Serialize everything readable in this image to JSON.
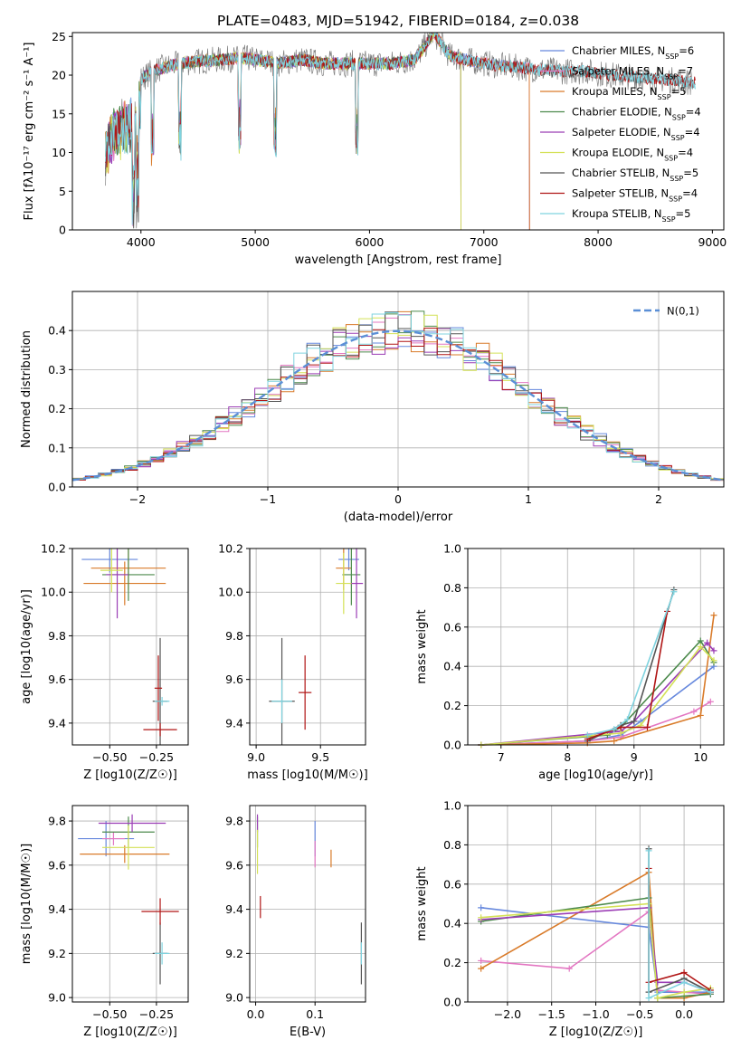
{
  "chart_data": [
    {
      "type": "line",
      "title": "PLATE=0483, MJD=51942, FIBERID=0184, z=0.038",
      "xlabel": "wavelength [Angstrom, rest frame]",
      "ylabel": "Flux [fλ10⁻¹⁷ erg cm⁻² s⁻¹ A⁻¹]",
      "xlim": [
        3400,
        9100
      ],
      "ylim": [
        0,
        25.5
      ],
      "xticks": [
        4000,
        5000,
        6000,
        7000,
        8000,
        9000
      ],
      "yticks": [
        0,
        5,
        10,
        15,
        20,
        25
      ],
      "grid": false,
      "legend_position": "upper right",
      "observed": {
        "color": "#808080",
        "x": [
          3700,
          3750,
          3850,
          3950,
          4000,
          4100,
          4200,
          4350,
          4500,
          4700,
          4900,
          5100,
          5200,
          5400,
          5600,
          5800,
          6000,
          6200,
          6400,
          6563,
          6700,
          6900,
          7100,
          7300,
          7500,
          7700,
          7900,
          8100,
          8300,
          8500,
          8700,
          8850
        ],
        "y": [
          13,
          15,
          16,
          17,
          19.5,
          20.5,
          21,
          21.5,
          21.8,
          22,
          22.2,
          21.8,
          21.5,
          22,
          21.5,
          21.5,
          21.5,
          21.5,
          22,
          25.5,
          22.5,
          21.8,
          21.3,
          21,
          20.7,
          20.5,
          20.5,
          20,
          19.8,
          19.5,
          19.3,
          19
        ]
      },
      "series": [
        {
          "name": "Chabrier MILES, N_SSP=6",
          "color": "#6688dd",
          "x_end": 7400
        },
        {
          "name": "Salpeter MILES, N_SSP=7",
          "color": "#e377c2",
          "x_end": 7400
        },
        {
          "name": "Kroupa MILES, N_SSP=5",
          "color": "#d97b2a",
          "x_end": 7400
        },
        {
          "name": "Chabrier ELODIE, N_SSP=4",
          "color": "#4c8a4c",
          "x_end": 6800
        },
        {
          "name": "Salpeter ELODIE, N_SSP=4",
          "color": "#9b3db5",
          "x_end": 6800
        },
        {
          "name": "Kroupa ELODIE, N_SSP=4",
          "color": "#d4e157",
          "x_end": 6800
        },
        {
          "name": "Chabrier STELIB, N_SSP=5",
          "color": "#555555",
          "x_end": 8850
        },
        {
          "name": "Salpeter STELIB, N_SSP=4",
          "color": "#b01515",
          "x_end": 8850
        },
        {
          "name": "Kroupa STELIB, N_SSP=5",
          "color": "#7fd3df",
          "x_end": 8850
        }
      ]
    },
    {
      "type": "line",
      "xlabel": "(data-model)/error",
      "ylabel": "Normed distribution",
      "xlim": [
        -2.5,
        2.5
      ],
      "ylim": [
        0,
        0.5
      ],
      "xticks": [
        -2,
        -1,
        0,
        1,
        2
      ],
      "yticks": [
        0.0,
        0.1,
        0.2,
        0.3,
        0.4
      ],
      "grid": true,
      "legend_position": "upper right",
      "reference": {
        "name": "N(0,1)",
        "color": "#5b8fd6",
        "linestyle": "dashed",
        "function": "standard normal pdf"
      },
      "histogram": {
        "bin_width": 0.1,
        "x_start": -2.5,
        "n_bins": 50,
        "n_series": 9,
        "note": "9 step histograms, one per model, colors as in panel 1"
      }
    },
    {
      "type": "scatter",
      "xlabel": "Z [log10(Z/Z☉)]",
      "ylabel": "age  [log10(age/yr)]",
      "xlim": [
        -0.7,
        -0.08
      ],
      "ylim": [
        9.3,
        10.2
      ],
      "xticks": [
        -0.5,
        -0.25
      ],
      "xtick_labels": [
        "−0.50",
        "−0.25"
      ],
      "yticks": [
        9.4,
        9.6,
        9.8,
        10.0,
        10.2
      ],
      "grid": true,
      "points": [
        {
          "x": -0.5,
          "y": 10.15,
          "xerr": 0.15,
          "yerr": 0.06,
          "color": "#6688dd"
        },
        {
          "x": -0.4,
          "y": 10.11,
          "xerr": 0.2,
          "yerr": 0.1,
          "color": "#d97b2a"
        },
        {
          "x": -0.42,
          "y": 10.04,
          "xerr": 0.22,
          "yerr": 0.1,
          "color": "#d97b2a"
        },
        {
          "x": -0.4,
          "y": 10.08,
          "xerr": 0.14,
          "yerr": 0.12,
          "color": "#4c8a4c"
        },
        {
          "x": -0.46,
          "y": 10.08,
          "xerr": 0.06,
          "yerr": 0.2,
          "color": "#9b3db5"
        },
        {
          "x": -0.49,
          "y": 10.1,
          "xerr": 0.06,
          "yerr": 0.1,
          "color": "#d4e157"
        },
        {
          "x": -0.23,
          "y": 9.5,
          "xerr": 0.04,
          "yerr": 0.29,
          "color": "#555555"
        },
        {
          "x": -0.24,
          "y": 9.56,
          "xerr": 0.02,
          "yerr": 0.15,
          "color": "#b01515"
        },
        {
          "x": -0.23,
          "y": 9.37,
          "xerr": 0.09,
          "yerr": 0.03,
          "color": "#b01515"
        },
        {
          "x": -0.22,
          "y": 9.5,
          "xerr": 0.04,
          "yerr": 0.02,
          "color": "#7fd3df"
        }
      ]
    },
    {
      "type": "scatter",
      "xlabel": "mass [log10(M/M☉)]",
      "ylabel": "",
      "xlim": [
        8.95,
        9.85
      ],
      "ylim": [
        9.3,
        10.2
      ],
      "xticks": [
        9.0,
        9.5
      ],
      "yticks": [
        9.4,
        9.6,
        9.8,
        10.0,
        10.2
      ],
      "grid": true,
      "points": [
        {
          "x": 9.72,
          "y": 10.15,
          "xerr": 0.08,
          "yerr": 0.05,
          "color": "#6688dd"
        },
        {
          "x": 9.68,
          "y": 10.11,
          "xerr": 0.06,
          "yerr": 0.1,
          "color": "#d97b2a"
        },
        {
          "x": 9.74,
          "y": 10.08,
          "xerr": 0.07,
          "yerr": 0.14,
          "color": "#4c8a4c"
        },
        {
          "x": 9.78,
          "y": 10.04,
          "xerr": 0.05,
          "yerr": 0.16,
          "color": "#9b3db5"
        },
        {
          "x": 9.68,
          "y": 10.04,
          "xerr": 0.06,
          "yerr": 0.14,
          "color": "#d4e157"
        },
        {
          "x": 9.2,
          "y": 9.5,
          "xerr": 0.1,
          "yerr": 0.29,
          "color": "#555555"
        },
        {
          "x": 9.38,
          "y": 9.54,
          "xerr": 0.05,
          "yerr": 0.17,
          "color": "#b01515"
        },
        {
          "x": 9.2,
          "y": 9.5,
          "xerr": 0.08,
          "yerr": 0.1,
          "color": "#7fd3df"
        }
      ]
    },
    {
      "type": "line",
      "xlabel": "age  [log10(age/yr)]",
      "ylabel": "mass weight",
      "xlim": [
        6.5,
        10.35
      ],
      "ylim": [
        0,
        1.0
      ],
      "xticks": [
        7,
        8,
        9,
        10
      ],
      "yticks": [
        0.0,
        0.2,
        0.4,
        0.6,
        0.8,
        1.0
      ],
      "grid": true,
      "series": [
        {
          "name": "Chabrier MILES",
          "color": "#6688dd",
          "x": [
            6.7,
            8.3,
            8.8,
            9.1,
            10.2
          ],
          "y": [
            0.0,
            0.02,
            0.05,
            0.12,
            0.4
          ]
        },
        {
          "name": "Salpeter MILES",
          "color": "#e377c2",
          "x": [
            6.7,
            8.3,
            8.8,
            9.9,
            10.15
          ],
          "y": [
            0.0,
            0.02,
            0.04,
            0.17,
            0.22
          ]
        },
        {
          "name": "Kroupa MILES",
          "color": "#d97b2a",
          "x": [
            6.7,
            8.3,
            8.7,
            10.0,
            10.2
          ],
          "y": [
            0.0,
            0.01,
            0.02,
            0.15,
            0.66
          ]
        },
        {
          "name": "Chabrier ELODIE",
          "color": "#4c8a4c",
          "x": [
            6.7,
            8.6,
            8.8,
            10.0,
            10.2
          ],
          "y": [
            0.0,
            0.05,
            0.09,
            0.53,
            0.42
          ]
        },
        {
          "name": "Salpeter ELODIE",
          "color": "#9b3db5",
          "x": [
            6.7,
            8.8,
            9.0,
            10.1,
            10.2
          ],
          "y": [
            0.0,
            0.07,
            0.12,
            0.52,
            0.48
          ]
        },
        {
          "name": "Kroupa ELODIE",
          "color": "#d4e157",
          "x": [
            6.7,
            8.8,
            9.1,
            10.0,
            10.2
          ],
          "y": [
            0.0,
            0.06,
            0.1,
            0.5,
            0.43
          ]
        },
        {
          "name": "Chabrier STELIB",
          "color": "#555555",
          "x": [
            8.3,
            8.8,
            9.0,
            9.6
          ],
          "y": [
            0.02,
            0.1,
            0.12,
            0.79
          ]
        },
        {
          "name": "Salpeter STELIB",
          "color": "#b01515",
          "x": [
            8.3,
            8.8,
            9.2,
            9.5
          ],
          "y": [
            0.03,
            0.09,
            0.09,
            0.68
          ]
        },
        {
          "name": "Kroupa STELIB",
          "color": "#7fd3df",
          "x": [
            8.3,
            8.7,
            8.9,
            9.6
          ],
          "y": [
            0.05,
            0.08,
            0.13,
            0.78
          ]
        }
      ]
    },
    {
      "type": "scatter",
      "xlabel": "Z [log10(Z/Z☉)]",
      "ylabel": "mass [log10(M/M☉)]",
      "xlim": [
        -0.7,
        -0.08
      ],
      "ylim": [
        8.98,
        9.87
      ],
      "xticks": [
        -0.5,
        -0.25
      ],
      "xtick_labels": [
        "−0.50",
        "−0.25"
      ],
      "yticks": [
        9.0,
        9.2,
        9.4,
        9.6,
        9.8
      ],
      "grid": true,
      "points": [
        {
          "x": -0.52,
          "y": 9.72,
          "xerr": 0.15,
          "yerr": 0.08,
          "color": "#6688dd"
        },
        {
          "x": -0.48,
          "y": 9.72,
          "xerr": 0.06,
          "yerr": 0.03,
          "color": "#e377c2"
        },
        {
          "x": -0.42,
          "y": 9.65,
          "xerr": 0.24,
          "yerr": 0.04,
          "color": "#d97b2a"
        },
        {
          "x": -0.4,
          "y": 9.75,
          "xerr": 0.14,
          "yerr": 0.07,
          "color": "#4c8a4c"
        },
        {
          "x": -0.38,
          "y": 9.79,
          "xerr": 0.18,
          "yerr": 0.04,
          "color": "#9b3db5"
        },
        {
          "x": -0.4,
          "y": 9.68,
          "xerr": 0.14,
          "yerr": 0.1,
          "color": "#d4e157"
        },
        {
          "x": -0.23,
          "y": 9.2,
          "xerr": 0.04,
          "yerr": 0.14,
          "color": "#555555"
        },
        {
          "x": -0.23,
          "y": 9.39,
          "xerr": 0.1,
          "yerr": 0.06,
          "color": "#b01515"
        },
        {
          "x": -0.22,
          "y": 9.2,
          "xerr": 0.04,
          "yerr": 0.05,
          "color": "#7fd3df"
        }
      ]
    },
    {
      "type": "scatter",
      "xlabel": "E(B-V)",
      "ylabel": "",
      "xlim": [
        -0.01,
        0.185
      ],
      "ylim": [
        8.98,
        9.87
      ],
      "xticks": [
        0.0,
        0.1
      ],
      "yticks": [
        9.0,
        9.2,
        9.4,
        9.6,
        9.8
      ],
      "grid": true,
      "points": [
        {
          "x": 0.1,
          "y": 9.72,
          "xerr": 0.0,
          "yerr": 0.08,
          "color": "#6688dd"
        },
        {
          "x": 0.1,
          "y": 9.65,
          "xerr": 0.0,
          "yerr": 0.06,
          "color": "#e377c2"
        },
        {
          "x": 0.127,
          "y": 9.63,
          "xerr": 0.0,
          "yerr": 0.04,
          "color": "#d97b2a"
        },
        {
          "x": 0.003,
          "y": 9.75,
          "xerr": 0.0,
          "yerr": 0.07,
          "color": "#4c8a4c"
        },
        {
          "x": 0.003,
          "y": 9.79,
          "xerr": 0.0,
          "yerr": 0.04,
          "color": "#9b3db5"
        },
        {
          "x": 0.003,
          "y": 9.66,
          "xerr": 0.0,
          "yerr": 0.1,
          "color": "#d4e157"
        },
        {
          "x": 0.178,
          "y": 9.2,
          "xerr": 0.0,
          "yerr": 0.14,
          "color": "#555555"
        },
        {
          "x": 0.008,
          "y": 9.41,
          "xerr": 0.0,
          "yerr": 0.05,
          "color": "#b01515"
        },
        {
          "x": 0.178,
          "y": 9.2,
          "xerr": 0.0,
          "yerr": 0.05,
          "color": "#7fd3df"
        }
      ]
    },
    {
      "type": "line",
      "xlabel": "Z [log10(Z/Z☉)]",
      "ylabel": "mass weight",
      "xlim": [
        -2.45,
        0.45
      ],
      "ylim": [
        0,
        1.0
      ],
      "xticks": [
        -2.0,
        -1.5,
        -1.0,
        -0.5,
        0.0
      ],
      "xtick_labels": [
        "−2.0",
        "−1.5",
        "−1.0",
        "−0.5",
        "0.0"
      ],
      "yticks": [
        0.0,
        0.2,
        0.4,
        0.6,
        0.8,
        1.0
      ],
      "grid": true,
      "series": [
        {
          "name": "Chabrier MILES",
          "color": "#6688dd",
          "x": [
            -2.3,
            -0.4,
            -0.3,
            0.0,
            0.3
          ],
          "y": [
            0.48,
            0.38,
            0.05,
            0.05,
            0.05
          ]
        },
        {
          "name": "Salpeter MILES",
          "color": "#e377c2",
          "x": [
            -2.3,
            -1.3,
            -0.4,
            -0.3,
            0.0,
            0.3
          ],
          "y": [
            0.21,
            0.17,
            0.46,
            0.06,
            0.05,
            0.04
          ]
        },
        {
          "name": "Kroupa MILES",
          "color": "#d97b2a",
          "x": [
            -2.3,
            -0.4,
            -0.3,
            0.0,
            0.3
          ],
          "y": [
            0.17,
            0.66,
            0.02,
            0.02,
            0.05
          ]
        },
        {
          "name": "Chabrier ELODIE",
          "color": "#4c8a4c",
          "x": [
            -2.3,
            -0.4,
            -0.3,
            0.0,
            0.3
          ],
          "y": [
            0.41,
            0.53,
            0.02,
            0.03,
            0.04
          ]
        },
        {
          "name": "Salpeter ELODIE",
          "color": "#9b3db5",
          "x": [
            -2.3,
            -0.4,
            -0.3,
            0.0,
            0.3
          ],
          "y": [
            0.42,
            0.48,
            0.1,
            0.1,
            0.05
          ]
        },
        {
          "name": "Kroupa ELODIE",
          "color": "#d4e157",
          "x": [
            -2.3,
            -0.4,
            -0.3,
            0.0,
            0.3
          ],
          "y": [
            0.43,
            0.5,
            0.02,
            0.05,
            0.07
          ]
        },
        {
          "name": "Chabrier STELIB",
          "color": "#555555",
          "x": [
            -0.4,
            -0.4,
            0.0,
            0.3
          ],
          "y": [
            0.78,
            0.05,
            0.12,
            0.05
          ]
        },
        {
          "name": "Salpeter STELIB",
          "color": "#b01515",
          "x": [
            -0.4,
            -0.4,
            0.0,
            0.3
          ],
          "y": [
            0.68,
            0.1,
            0.15,
            0.06
          ]
        },
        {
          "name": "Kroupa STELIB",
          "color": "#7fd3df",
          "x": [
            -0.4,
            -0.4,
            0.0,
            0.3
          ],
          "y": [
            0.77,
            0.02,
            0.1,
            0.05
          ]
        }
      ]
    }
  ]
}
